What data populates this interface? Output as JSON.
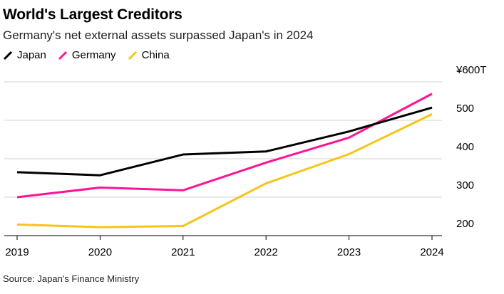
{
  "header": {
    "title": "World's Largest Creditors",
    "subtitle": "Germany's net external assets surpassed Japan's in 2024"
  },
  "footer": {
    "source": "Source: Japan's Finance Ministry"
  },
  "chart_data": {
    "type": "line",
    "title": "World's Largest Creditors",
    "subtitle": "Germany's net external assets surpassed Japan's in 2024",
    "x": [
      "2019",
      "2020",
      "2021",
      "2022",
      "2023",
      "2024"
    ],
    "series": [
      {
        "name": "Japan",
        "color": "#000000",
        "values": [
          365,
          357,
          411,
          419,
          471,
          533
        ]
      },
      {
        "name": "Germany",
        "color": "#ff1493",
        "values": [
          300,
          325,
          318,
          390,
          455,
          569
        ]
      },
      {
        "name": "China",
        "color": "#f5c518",
        "values": [
          229,
          222,
          225,
          336,
          412,
          516
        ]
      }
    ],
    "y_ticks": [
      {
        "value": 600,
        "label": "¥600T"
      },
      {
        "value": 500,
        "label": "500"
      },
      {
        "value": 400,
        "label": "400"
      },
      {
        "value": 300,
        "label": "300"
      },
      {
        "value": 200,
        "label": "200"
      }
    ],
    "ylim": [
      200,
      600
    ],
    "grid": true,
    "legend_position": "top-left",
    "y_axis_side": "right"
  }
}
